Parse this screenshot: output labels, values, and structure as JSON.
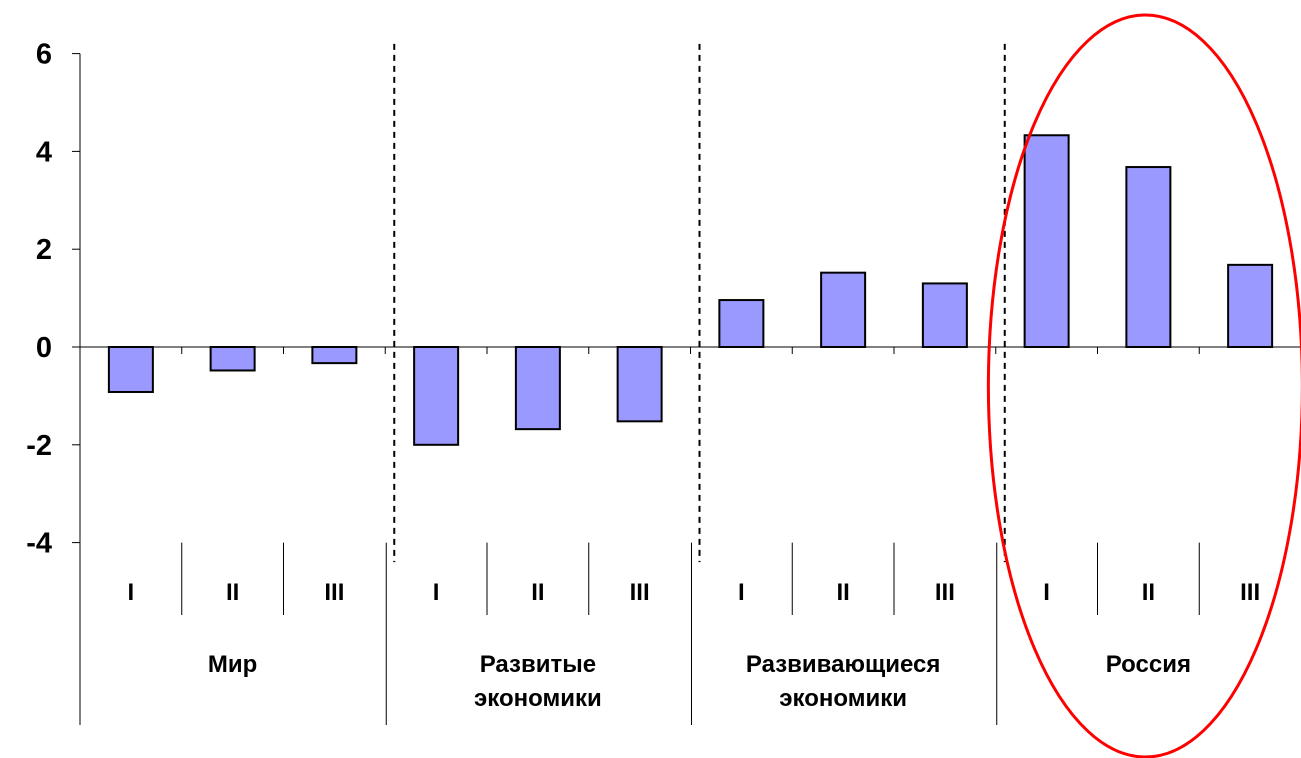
{
  "chart_data": {
    "type": "bar",
    "title": "",
    "xlabel": "",
    "ylabel": "",
    "ylim": [
      -4,
      6
    ],
    "yticks": [
      -4,
      -2,
      0,
      2,
      4,
      6
    ],
    "ytick_labels": [
      "-4",
      "-2",
      "0",
      "2",
      "4",
      "6"
    ],
    "grid": false,
    "legend": "none",
    "groups": [
      {
        "name": "Мир",
        "categories": [
          "I",
          "II",
          "III"
        ],
        "values": [
          -0.92,
          -0.48,
          -0.33
        ]
      },
      {
        "name": "Развитые экономики",
        "name_lines": [
          "Развитые",
          "экономики"
        ],
        "categories": [
          "I",
          "II",
          "III"
        ],
        "values": [
          -2.0,
          -1.68,
          -1.52
        ]
      },
      {
        "name": "Развивающиеся экономики",
        "name_lines": [
          "Развивающиеся",
          "экономики"
        ],
        "categories": [
          "I",
          "II",
          "III"
        ],
        "values": [
          0.96,
          1.52,
          1.3
        ]
      },
      {
        "name": "Россия",
        "categories": [
          "I",
          "II",
          "III"
        ],
        "values": [
          4.33,
          3.68,
          1.68
        ]
      }
    ],
    "highlight_group": "Россия",
    "colors": {
      "bar_fill": "#9999ff",
      "bar_stroke": "#000000",
      "axis": "#000000",
      "highlight_ellipse": "#ff0000"
    }
  }
}
